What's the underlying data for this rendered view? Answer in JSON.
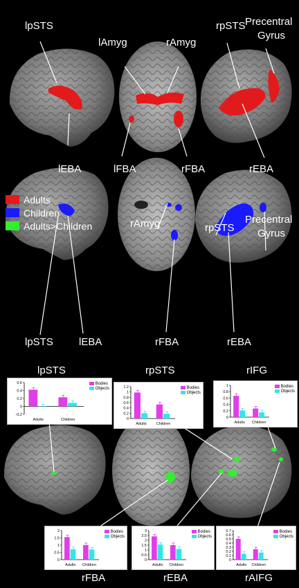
{
  "colors": {
    "adults": "#e31a1c",
    "children": "#1a1aff",
    "adults_gt_children": "#33ee33",
    "bodies_bar": "#e03ee8",
    "objects_bar": "#33e6e6"
  },
  "row1": {
    "labels": {
      "lpsts": "lpSTS",
      "lamyg": "lAmyg",
      "ramyg": "rAmyg",
      "rpsts": "rpSTS",
      "precentral": "Precentral",
      "gyrus": "Gyrus",
      "leba": "lEBA",
      "lfba": "lFBA",
      "rfba": "rFBA",
      "reba": "rEBA"
    }
  },
  "legend": {
    "adults": "Adults",
    "children": "Children",
    "adults_gt_children": "Adults>Children"
  },
  "row2": {
    "labels": {
      "ramyg": "rAmyg",
      "rpsts": "rpSTS",
      "precentral": "Precentral",
      "gyrus": "Gyrus",
      "lpsts": "lpSTS",
      "leba": "lEBA",
      "rfba": "rFBA",
      "reba": "rEBA"
    }
  },
  "bar_legend": {
    "bodies": "Bodies",
    "objects": "Objects"
  },
  "chart_data": [
    {
      "type": "bar",
      "title": "lpSTS",
      "categories": [
        "Adults",
        "Children"
      ],
      "ylim": [
        -0.2,
        0.6
      ],
      "yticks": [
        "0.6",
        "0.4",
        "0.2",
        "0",
        "-0.2"
      ],
      "series": [
        {
          "name": "Bodies",
          "values": [
            0.42,
            0.23
          ]
        },
        {
          "name": "Objects",
          "values": [
            0.0,
            0.09
          ]
        }
      ]
    },
    {
      "type": "bar",
      "title": "rpSTS",
      "categories": [
        "Adults",
        "Children"
      ],
      "ylim": [
        0,
        1.2
      ],
      "yticks": [
        "1.2",
        "1",
        "0.8",
        "0.6",
        "0.4",
        "0.2",
        "0"
      ],
      "series": [
        {
          "name": "Bodies",
          "values": [
            0.98,
            0.53
          ]
        },
        {
          "name": "Objects",
          "values": [
            0.2,
            0.18
          ]
        }
      ]
    },
    {
      "type": "bar",
      "title": "rIFG",
      "categories": [
        "Adults",
        "Children"
      ],
      "ylim": [
        0,
        1
      ],
      "yticks": [
        "1",
        "0.8",
        "0.6",
        "0.4",
        "0.2",
        "0"
      ],
      "series": [
        {
          "name": "Bodies",
          "values": [
            0.67,
            0.27
          ]
        },
        {
          "name": "Objects",
          "values": [
            0.21,
            0.15
          ]
        }
      ]
    },
    {
      "type": "bar",
      "title": "rFBA",
      "categories": [
        "Adults",
        "Children"
      ],
      "ylim": [
        0,
        2
      ],
      "yticks": [
        "2",
        "1.5",
        "1",
        "0.5",
        "0"
      ],
      "series": [
        {
          "name": "Bodies",
          "values": [
            1.55,
            1.0
          ]
        },
        {
          "name": "Objects",
          "values": [
            0.72,
            0.7
          ]
        }
      ]
    },
    {
      "type": "bar",
      "title": "rEBA",
      "categories": [
        "Adults",
        "Children"
      ],
      "ylim": [
        0,
        3
      ],
      "yticks": [
        "3",
        "2.5",
        "2",
        "1.5",
        "1",
        "0.5",
        "0"
      ],
      "series": [
        {
          "name": "Bodies",
          "values": [
            2.4,
            1.5
          ]
        },
        {
          "name": "Objects",
          "values": [
            1.55,
            1.1
          ]
        }
      ]
    },
    {
      "type": "bar",
      "title": "rAIFG",
      "categories": [
        "Adults",
        "Children"
      ],
      "ylim": [
        0,
        0.7
      ],
      "yticks": [
        "0.7",
        "0.6",
        "0.5",
        "0.4",
        "0.3",
        "0.2",
        "0.1",
        "0"
      ],
      "series": [
        {
          "name": "Bodies",
          "values": [
            0.5,
            0.25
          ]
        },
        {
          "name": "Objects",
          "values": [
            0.14,
            0.17
          ]
        }
      ]
    }
  ]
}
